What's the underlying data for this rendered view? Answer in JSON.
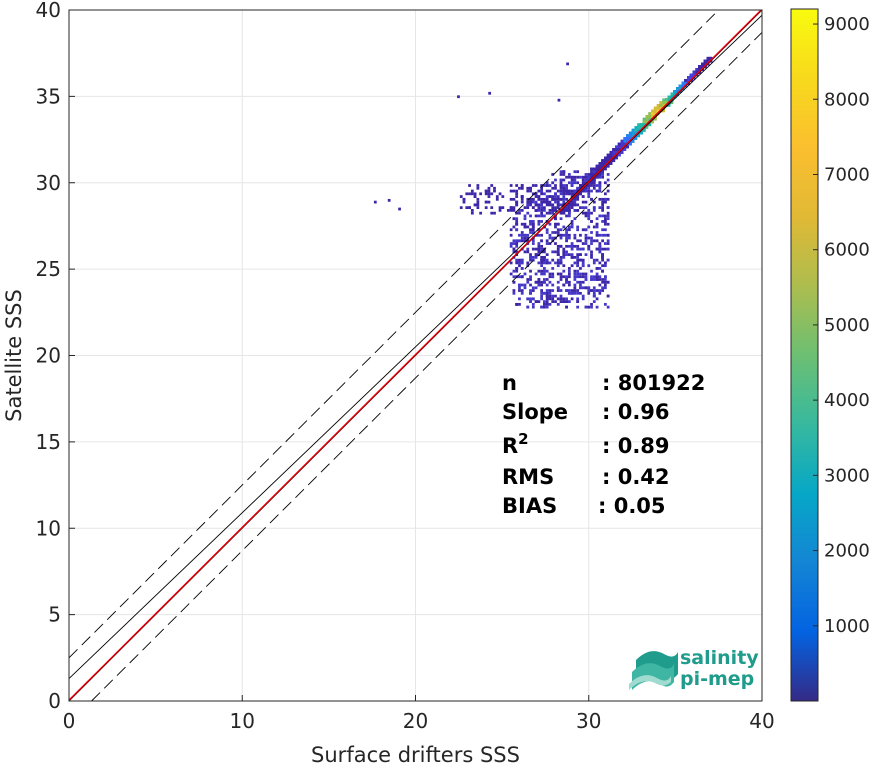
{
  "chart_data": {
    "type": "heatmap",
    "xlabel": "Surface drifters SSS",
    "ylabel": "Satellite SSS",
    "xlim": [
      0,
      40
    ],
    "ylim": [
      0,
      40
    ],
    "xticks": [
      "0",
      "10",
      "20",
      "30",
      "40"
    ],
    "yticks": [
      "0",
      "5",
      "10",
      "15",
      "20",
      "25",
      "30",
      "35",
      "40"
    ],
    "grid": true,
    "colorbar": {
      "ticks": [
        "1000",
        "2000",
        "3000",
        "4000",
        "5000",
        "6000",
        "7000",
        "8000",
        "9000"
      ],
      "range": [
        0,
        9200
      ],
      "colormap": "parula"
    },
    "density_cloud": {
      "x_range": [
        17.5,
        37.2
      ],
      "y_range": [
        22.5,
        37.2
      ],
      "peak": {
        "x": 33.8,
        "y": 34.0
      }
    },
    "reference_lines": [
      {
        "kind": "identity",
        "slope": 1,
        "intercept": 0,
        "color": "#000000",
        "style": "solid"
      },
      {
        "kind": "offset",
        "slope": 1,
        "intercept": 2.5,
        "color": "#000000",
        "style": "dashed"
      },
      {
        "kind": "offset",
        "slope": 1,
        "intercept": -1.3,
        "color": "#000000",
        "style": "dashed"
      },
      {
        "kind": "regression",
        "slope": 0.96,
        "intercept": 1.3,
        "color": "#000000",
        "style": "solid"
      },
      {
        "kind": "fit",
        "slope": 1.0,
        "intercept": 0.05,
        "color": "#e8000b",
        "style": "solid"
      }
    ],
    "stats": [
      {
        "label": "n",
        "value": ": 801922"
      },
      {
        "label": "Slope",
        "value": ": 0.96"
      },
      {
        "label": "R",
        "sup": "2",
        "value": ": 0.89"
      },
      {
        "label": "RMS",
        "value": ": 0.42"
      },
      {
        "label": "BIAS",
        "value": ": 0.05"
      }
    ]
  },
  "logo": {
    "line1": "salinity",
    "line2": "pi-mep"
  }
}
